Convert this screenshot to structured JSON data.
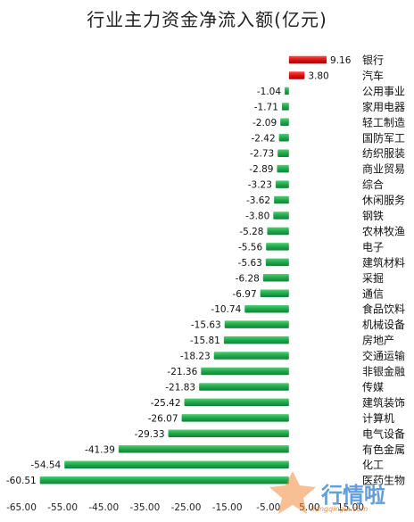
{
  "chart_data": {
    "type": "bar",
    "orientation": "horizontal",
    "title": "行业主力资金净流入额(亿元)",
    "categories": [
      "银行",
      "汽车",
      "公用事业",
      "家用电器",
      "轻工制造",
      "国防军工",
      "纺织服装",
      "商业贸易",
      "综合",
      "休闲服务",
      "钢铁",
      "农林牧渔",
      "电子",
      "建筑材料",
      "采掘",
      "通信",
      "食品饮料",
      "机械设备",
      "房地产",
      "交通运输",
      "非银金融",
      "传媒",
      "建筑装饰",
      "计算机",
      "电气设备",
      "有色金属",
      "化工",
      "医药生物"
    ],
    "values": [
      9.16,
      3.8,
      -1.04,
      -1.71,
      -2.09,
      -2.42,
      -2.73,
      -2.89,
      -3.23,
      -3.62,
      -3.8,
      -5.28,
      -5.56,
      -5.63,
      -6.28,
      -6.97,
      -10.74,
      -15.63,
      -15.81,
      -18.23,
      -21.36,
      -21.83,
      -25.42,
      -26.07,
      -29.33,
      -41.39,
      -54.54,
      -60.51
    ],
    "value_labels": [
      "9.16",
      "3.80",
      "-1.04",
      "-1.71",
      "-2.09",
      "-2.42",
      "-2.73",
      "-2.89",
      "-3.23",
      "-3.62",
      "-3.80",
      "-5.28",
      "-5.56",
      "-5.63",
      "-6.28",
      "-6.97",
      "-10.74",
      "-15.63",
      "-15.81",
      "-18.23",
      "-21.36",
      "-21.83",
      "-25.42",
      "-26.07",
      "-29.33",
      "-41.39",
      "-54.54",
      "-60.51"
    ],
    "xlim": [
      -65,
      15
    ],
    "xticks": [
      "-65.00",
      "-55.00",
      "-45.00",
      "-35.00",
      "-25.00",
      "-15.00",
      "-5.00",
      "5.00",
      "15.00"
    ],
    "xtick_values": [
      -65,
      -55,
      -45,
      -35,
      -25,
      -15,
      -5,
      5,
      15
    ],
    "grid": false,
    "colors": {
      "positive": "#e01010",
      "negative": "#1fa84a"
    }
  },
  "watermark": {
    "text": "行情啦",
    "url": "hangqingla.com"
  }
}
